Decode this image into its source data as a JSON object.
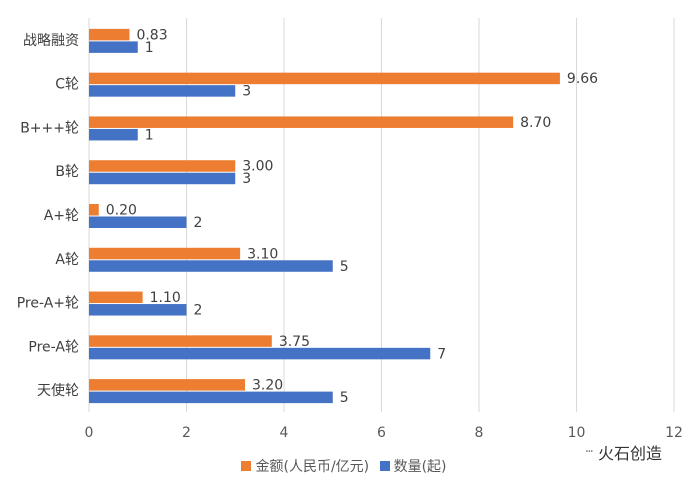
{
  "chart_data": {
    "type": "bar",
    "orientation": "horizontal",
    "categories": [
      "天使轮",
      "Pre-A轮",
      "Pre-A+轮",
      "A轮",
      "A+轮",
      "B轮",
      "B+++轮",
      "C轮",
      "战略融资"
    ],
    "series": [
      {
        "name": "金额(人民币/亿元)",
        "color": "#ED7D31",
        "values": [
          3.2,
          3.75,
          1.1,
          3.1,
          0.2,
          3.0,
          8.7,
          9.66,
          0.83
        ],
        "labels": [
          "3.20",
          "3.75",
          "1.10",
          "3.10",
          "0.20",
          "3.00",
          "8.70",
          "9.66",
          "0.83"
        ]
      },
      {
        "name": "数量(起)",
        "color": "#4472C4",
        "values": [
          5,
          7,
          2,
          5,
          2,
          3,
          1,
          3,
          1
        ],
        "labels": [
          "5",
          "7",
          "2",
          "5",
          "2",
          "3",
          "1",
          "3",
          "1"
        ]
      }
    ],
    "xlim": [
      0,
      12
    ],
    "xticks": [
      "0",
      "2",
      "4",
      "6",
      "8",
      "10",
      "12"
    ],
    "grid": true,
    "legend_position": "bottom"
  },
  "watermark": {
    "text": "火石创造",
    "dots": "···",
    "icon": "wechat-dots-icon"
  }
}
